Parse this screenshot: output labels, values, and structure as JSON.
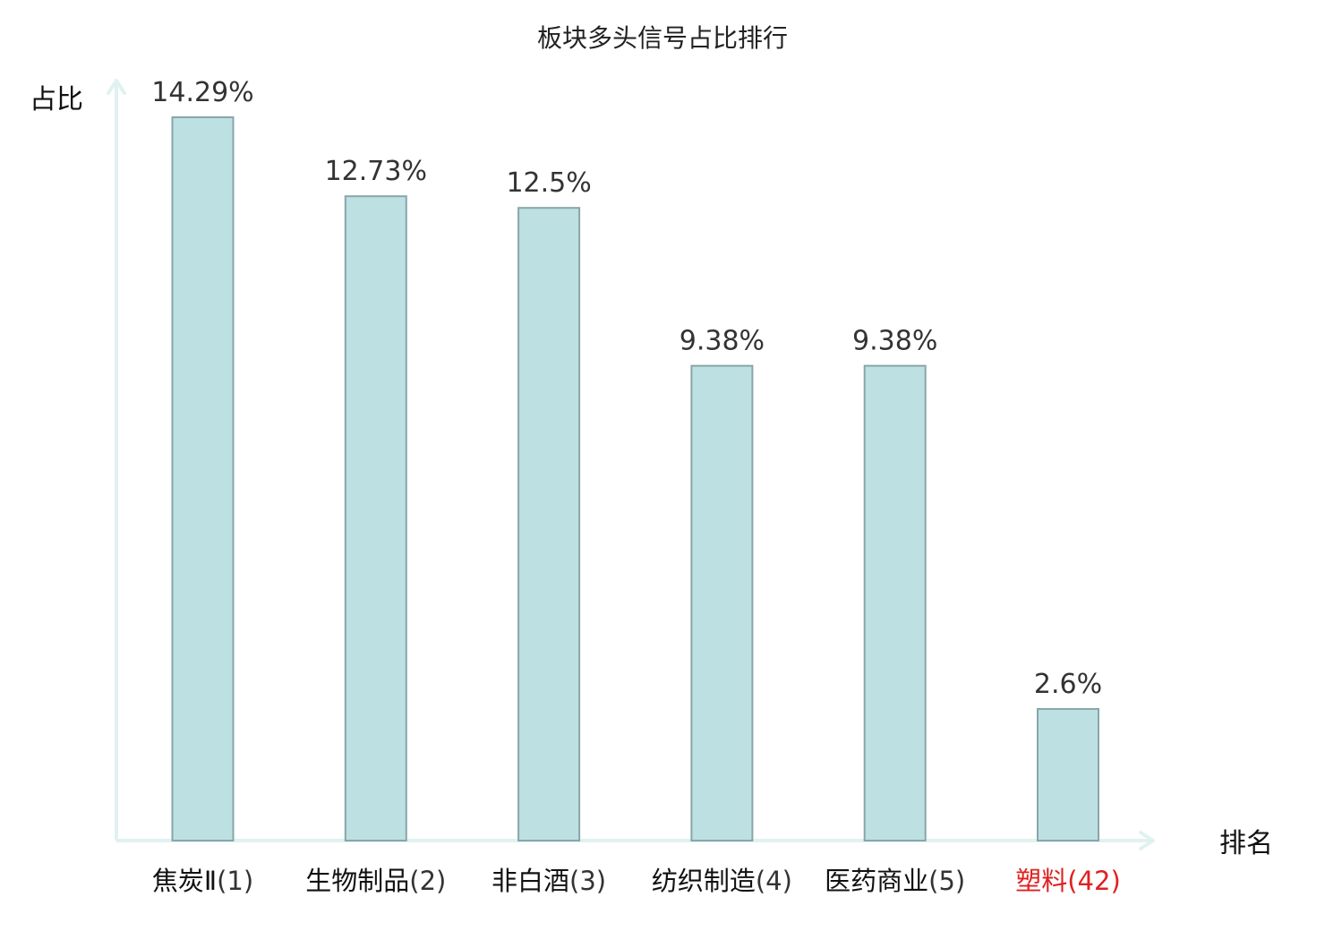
{
  "chart_data": {
    "type": "bar",
    "title": "板块多头信号占比排行",
    "ylabel": "占比",
    "xlabel": "排名",
    "categories": [
      {
        "name": "焦炭Ⅱ",
        "rank": "(1)",
        "highlight": false
      },
      {
        "name": "生物制品",
        "rank": "(2)",
        "highlight": false
      },
      {
        "name": "非白酒",
        "rank": "(3)",
        "highlight": false
      },
      {
        "name": "纺织制造",
        "rank": "(4)",
        "highlight": false
      },
      {
        "name": "医药商业",
        "rank": "(5)",
        "highlight": false
      },
      {
        "name": "塑料",
        "rank": "(42)",
        "highlight": true
      }
    ],
    "values": [
      14.29,
      12.73,
      12.5,
      9.38,
      9.38,
      2.6
    ],
    "value_labels": [
      "14.29%",
      "12.73%",
      "12.5%",
      "9.38%",
      "9.38%",
      "2.6%"
    ],
    "ylim": [
      0,
      14.29
    ],
    "grid": false,
    "colors": {
      "bar_fill": "#bde0e3",
      "bar_stroke": "#88a6a8",
      "axis": "#e0f2ef",
      "highlight": "#e02020",
      "category_text": "#111111",
      "rank_text": "#333333"
    }
  }
}
